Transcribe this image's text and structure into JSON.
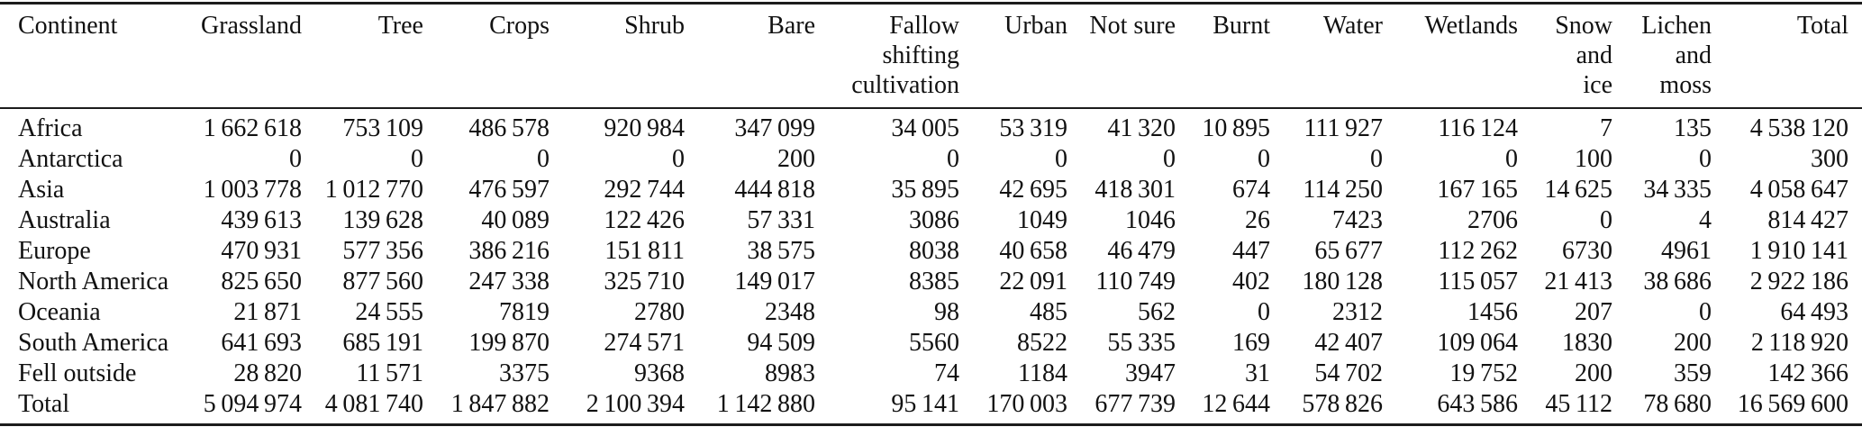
{
  "page": {
    "background": "#ffffff",
    "text_color": "#111111",
    "rule_color": "#1c1c1c"
  },
  "table": {
    "columns": [
      {
        "id": "continent",
        "label": "Continent"
      },
      {
        "id": "grassland",
        "label": "Grassland"
      },
      {
        "id": "tree",
        "label": "Tree"
      },
      {
        "id": "crops",
        "label": "Crops"
      },
      {
        "id": "shrub",
        "label": "Shrub"
      },
      {
        "id": "bare",
        "label": "Bare"
      },
      {
        "id": "fallow-shifting-cultivation",
        "label": "Fallow\nshifting\ncultivation"
      },
      {
        "id": "urban",
        "label": "Urban"
      },
      {
        "id": "not-sure",
        "label": "Not sure"
      },
      {
        "id": "burnt",
        "label": "Burnt"
      },
      {
        "id": "water",
        "label": "Water"
      },
      {
        "id": "wetlands",
        "label": "Wetlands"
      },
      {
        "id": "snow-and-ice",
        "label": "Snow\nand\nice"
      },
      {
        "id": "lichen-and-moss",
        "label": "Lichen\nand\nmoss"
      },
      {
        "id": "total",
        "label": "Total"
      }
    ],
    "rows": [
      {
        "is_total": false,
        "cells": [
          "Africa",
          "1 662 618",
          "753 109",
          "486 578",
          "920 984",
          "347 099",
          "34 005",
          "53 319",
          "41 320",
          "10 895",
          "111 927",
          "116 124",
          "7",
          "135",
          "4 538 120"
        ]
      },
      {
        "is_total": false,
        "cells": [
          "Antarctica",
          "0",
          "0",
          "0",
          "0",
          "200",
          "0",
          "0",
          "0",
          "0",
          "0",
          "0",
          "100",
          "0",
          "300"
        ]
      },
      {
        "is_total": false,
        "cells": [
          "Asia",
          "1 003 778",
          "1 012 770",
          "476 597",
          "292 744",
          "444 818",
          "35 895",
          "42 695",
          "418 301",
          "674",
          "114 250",
          "167 165",
          "14 625",
          "34 335",
          "4 058 647"
        ]
      },
      {
        "is_total": false,
        "cells": [
          "Australia",
          "439 613",
          "139 628",
          "40 089",
          "122 426",
          "57 331",
          "3086",
          "1049",
          "1046",
          "26",
          "7423",
          "2706",
          "0",
          "4",
          "814 427"
        ]
      },
      {
        "is_total": false,
        "cells": [
          "Europe",
          "470 931",
          "577 356",
          "386 216",
          "151 811",
          "38 575",
          "8038",
          "40 658",
          "46 479",
          "447",
          "65 677",
          "112 262",
          "6730",
          "4961",
          "1 910 141"
        ]
      },
      {
        "is_total": false,
        "cells": [
          "North America",
          "825 650",
          "877 560",
          "247 338",
          "325 710",
          "149 017",
          "8385",
          "22 091",
          "110 749",
          "402",
          "180 128",
          "115 057",
          "21 413",
          "38 686",
          "2 922 186"
        ]
      },
      {
        "is_total": false,
        "cells": [
          "Oceania",
          "21 871",
          "24 555",
          "7819",
          "2780",
          "2348",
          "98",
          "485",
          "562",
          "0",
          "2312",
          "1456",
          "207",
          "0",
          "64 493"
        ]
      },
      {
        "is_total": false,
        "cells": [
          "South America",
          "641 693",
          "685 191",
          "199 870",
          "274 571",
          "94 509",
          "5560",
          "8522",
          "55 335",
          "169",
          "42 407",
          "109 064",
          "1830",
          "200",
          "2 118 920"
        ]
      },
      {
        "is_total": false,
        "cells": [
          "Fell outside",
          "28 820",
          "11 571",
          "3375",
          "9368",
          "8983",
          "74",
          "1184",
          "3947",
          "31",
          "54 702",
          "19 752",
          "200",
          "359",
          "142 366"
        ]
      },
      {
        "is_total": true,
        "cells": [
          "Total",
          "5 094 974",
          "4 081 740",
          "1 847 882",
          "2 100 394",
          "1 142 880",
          "95 141",
          "170 003",
          "677 739",
          "12 644",
          "578 826",
          "643 586",
          "45 112",
          "78 680",
          "16 569 600"
        ]
      }
    ]
  }
}
